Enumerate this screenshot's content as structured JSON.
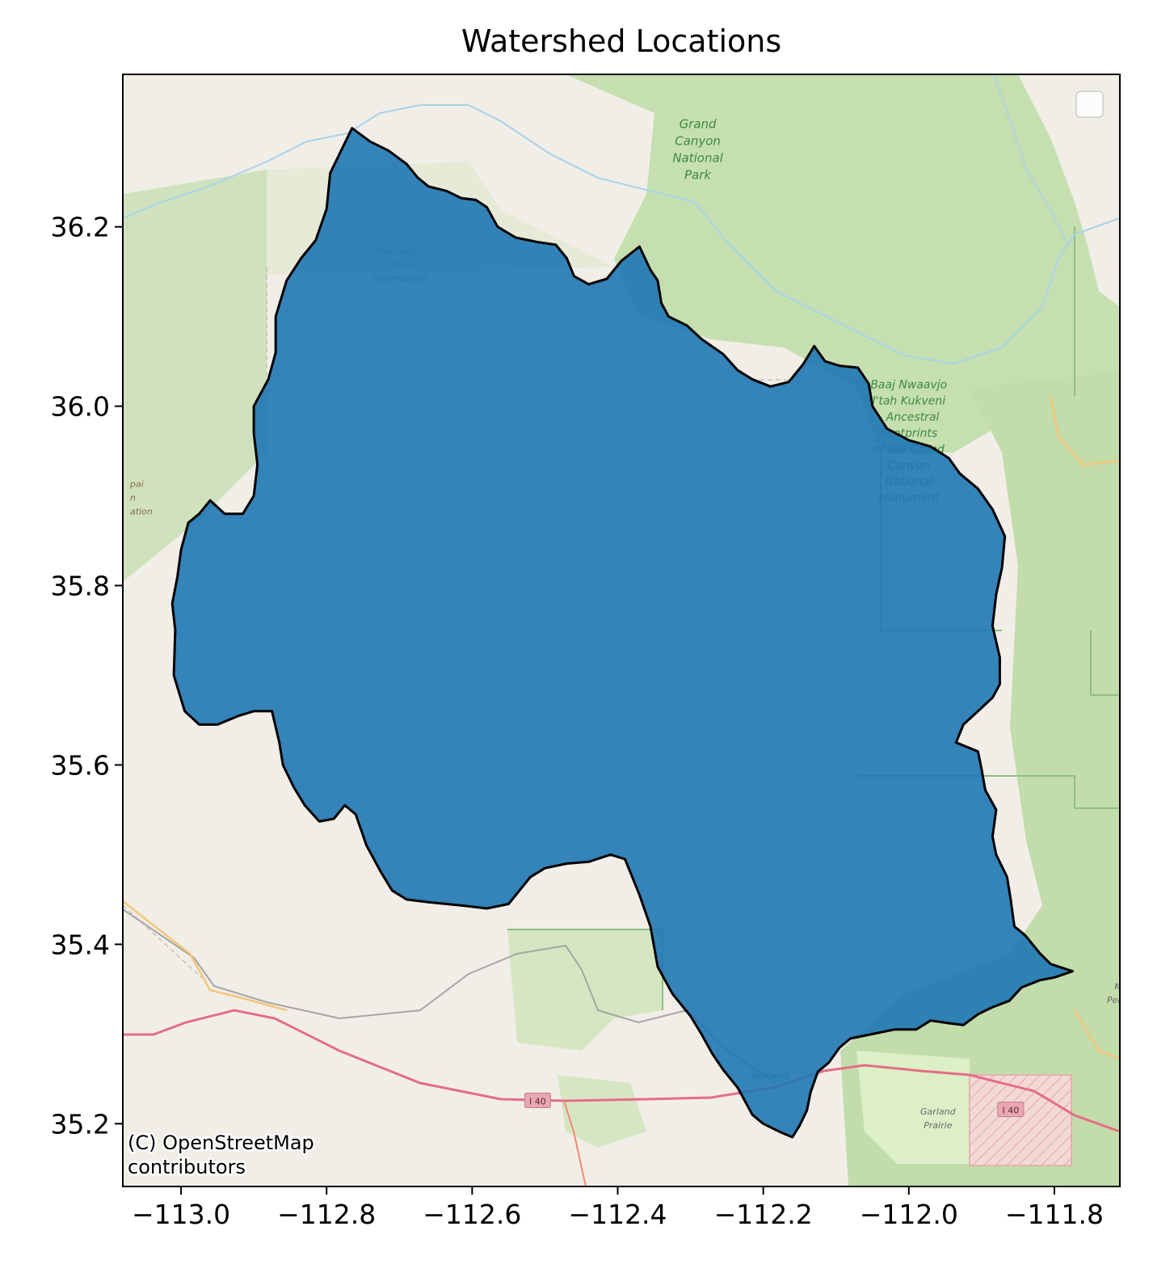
{
  "chart_data": {
    "type": "map",
    "title": "Watershed Locations",
    "xlim": [
      -113.08,
      -111.71
    ],
    "ylim": [
      35.13,
      36.37
    ],
    "x_ticks": [
      -113.0,
      -112.8,
      -112.6,
      -112.4,
      -112.2,
      -112.0,
      -111.8
    ],
    "x_tick_labels": [
      "−113.0",
      "−112.8",
      "−112.6",
      "−112.4",
      "−112.2",
      "−112.0",
      "−111.8"
    ],
    "y_ticks": [
      35.2,
      35.4,
      35.6,
      35.8,
      36.0,
      36.2
    ],
    "y_tick_labels": [
      "35.2",
      "35.4",
      "35.6",
      "35.8",
      "36.0",
      "36.2"
    ],
    "legend": {
      "placement": "upper right",
      "entries": []
    },
    "basemap_attribution": [
      "(C) OpenStreetMap",
      "contributors"
    ],
    "basemap_labels": [
      {
        "lines": [
          "Grand",
          "Canyon",
          "National",
          "Park"
        ],
        "lon": -112.29,
        "lat": 36.31
      },
      {
        "lines": [
          "Navasupai",
          "Indian",
          "Reservation"
        ],
        "lon": -112.7,
        "lat": 36.17
      },
      {
        "lines": [
          "Baaj Nwaavjo",
          "I'tah Kukveni",
          "- Ancestral",
          "Footprints",
          "of the Grand",
          "Canyon",
          "National",
          "Monument"
        ],
        "lon": -112.0,
        "lat": 36.02
      },
      {
        "lines": [
          "pai",
          "n",
          "ation"
        ],
        "lon": -113.07,
        "lat": 35.91
      },
      {
        "lines": [
          "Garland",
          "Prairie"
        ],
        "lon": -111.96,
        "lat": 35.21
      },
      {
        "lines": [
          "Williams"
        ],
        "lon": -112.19,
        "lat": 35.25
      },
      {
        "lines": [
          "Ka",
          "Peaks"
        ],
        "lon": -111.71,
        "lat": 35.35
      }
    ],
    "road_shields": [
      {
        "label": "I 40",
        "lon": -112.51,
        "lat": 35.226
      },
      {
        "label": "I 40",
        "lon": -111.86,
        "lat": 35.216
      }
    ],
    "watershed": {
      "fill": "#1f77b4",
      "edge": "#000000",
      "opacity": 0.9,
      "boundary": [
        [
          -112.765,
          36.31
        ],
        [
          -112.74,
          36.295
        ],
        [
          -112.715,
          36.285
        ],
        [
          -112.69,
          36.27
        ],
        [
          -112.675,
          36.255
        ],
        [
          -112.66,
          36.245
        ],
        [
          -112.635,
          36.24
        ],
        [
          -112.615,
          36.232
        ],
        [
          -112.595,
          36.23
        ],
        [
          -112.58,
          36.222
        ],
        [
          -112.565,
          36.2
        ],
        [
          -112.54,
          36.188
        ],
        [
          -112.51,
          36.183
        ],
        [
          -112.485,
          36.18
        ],
        [
          -112.47,
          36.165
        ],
        [
          -112.46,
          36.145
        ],
        [
          -112.44,
          36.136
        ],
        [
          -112.415,
          36.142
        ],
        [
          -112.395,
          36.162
        ],
        [
          -112.37,
          36.178
        ],
        [
          -112.355,
          36.152
        ],
        [
          -112.345,
          36.14
        ],
        [
          -112.34,
          36.115
        ],
        [
          -112.33,
          36.1
        ],
        [
          -112.305,
          36.09
        ],
        [
          -112.285,
          36.075
        ],
        [
          -112.255,
          36.058
        ],
        [
          -112.235,
          36.04
        ],
        [
          -112.215,
          36.03
        ],
        [
          -112.19,
          36.022
        ],
        [
          -112.165,
          36.027
        ],
        [
          -112.145,
          36.047
        ],
        [
          -112.13,
          36.067
        ],
        [
          -112.115,
          36.05
        ],
        [
          -112.095,
          36.045
        ],
        [
          -112.07,
          36.043
        ],
        [
          -112.055,
          36.025
        ],
        [
          -112.05,
          36.0
        ],
        [
          -112.03,
          35.975
        ],
        [
          -112.0,
          35.962
        ],
        [
          -111.97,
          35.955
        ],
        [
          -111.945,
          35.942
        ],
        [
          -111.93,
          35.925
        ],
        [
          -111.905,
          35.908
        ],
        [
          -111.885,
          35.885
        ],
        [
          -111.868,
          35.855
        ],
        [
          -111.872,
          35.82
        ],
        [
          -111.88,
          35.79
        ],
        [
          -111.885,
          35.755
        ],
        [
          -111.875,
          35.72
        ],
        [
          -111.875,
          35.69
        ],
        [
          -111.885,
          35.675
        ],
        [
          -111.905,
          35.66
        ],
        [
          -111.925,
          35.645
        ],
        [
          -111.935,
          35.625
        ],
        [
          -111.905,
          35.615
        ],
        [
          -111.9,
          35.595
        ],
        [
          -111.895,
          35.572
        ],
        [
          -111.88,
          35.55
        ],
        [
          -111.885,
          35.52
        ],
        [
          -111.88,
          35.5
        ],
        [
          -111.865,
          35.475
        ],
        [
          -111.86,
          35.45
        ],
        [
          -111.855,
          35.42
        ],
        [
          -111.84,
          35.41
        ],
        [
          -111.82,
          35.39
        ],
        [
          -111.805,
          35.378
        ],
        [
          -111.775,
          35.37
        ],
        [
          -111.8,
          35.363
        ],
        [
          -111.82,
          35.36
        ],
        [
          -111.845,
          35.352
        ],
        [
          -111.862,
          35.337
        ],
        [
          -111.885,
          35.33
        ],
        [
          -111.905,
          35.322
        ],
        [
          -111.925,
          35.31
        ],
        [
          -111.945,
          35.312
        ],
        [
          -111.97,
          35.315
        ],
        [
          -111.99,
          35.305
        ],
        [
          -112.02,
          35.305
        ],
        [
          -112.05,
          35.3
        ],
        [
          -112.08,
          35.295
        ],
        [
          -112.095,
          35.285
        ],
        [
          -112.11,
          35.268
        ],
        [
          -112.125,
          35.258
        ],
        [
          -112.135,
          35.235
        ],
        [
          -112.14,
          35.215
        ],
        [
          -112.15,
          35.198
        ],
        [
          -112.16,
          35.185
        ],
        [
          -112.175,
          35.19
        ],
        [
          -112.2,
          35.2
        ],
        [
          -112.215,
          35.21
        ],
        [
          -112.235,
          35.24
        ],
        [
          -112.255,
          35.26
        ],
        [
          -112.27,
          35.278
        ],
        [
          -112.285,
          35.3
        ],
        [
          -112.3,
          35.32
        ],
        [
          -112.325,
          35.345
        ],
        [
          -112.345,
          35.375
        ],
        [
          -112.355,
          35.42
        ],
        [
          -112.37,
          35.455
        ],
        [
          -112.38,
          35.475
        ],
        [
          -112.39,
          35.495
        ],
        [
          -112.41,
          35.5
        ],
        [
          -112.44,
          35.492
        ],
        [
          -112.47,
          35.49
        ],
        [
          -112.5,
          35.485
        ],
        [
          -112.52,
          35.475
        ],
        [
          -112.535,
          35.46
        ],
        [
          -112.55,
          35.445
        ],
        [
          -112.58,
          35.44
        ],
        [
          -112.61,
          35.443
        ],
        [
          -112.635,
          35.445
        ],
        [
          -112.66,
          35.447
        ],
        [
          -112.69,
          35.45
        ],
        [
          -112.71,
          35.46
        ],
        [
          -112.725,
          35.48
        ],
        [
          -112.745,
          35.51
        ],
        [
          -112.76,
          35.545
        ],
        [
          -112.775,
          35.555
        ],
        [
          -112.79,
          35.54
        ],
        [
          -112.81,
          35.537
        ],
        [
          -112.83,
          35.555
        ],
        [
          -112.845,
          35.575
        ],
        [
          -112.86,
          35.6
        ],
        [
          -112.865,
          35.625
        ],
        [
          -112.875,
          35.66
        ],
        [
          -112.9,
          35.66
        ],
        [
          -112.92,
          35.655
        ],
        [
          -112.95,
          35.645
        ],
        [
          -112.975,
          35.645
        ],
        [
          -112.995,
          35.66
        ],
        [
          -113.01,
          35.7
        ],
        [
          -113.008,
          35.75
        ],
        [
          -113.012,
          35.78
        ],
        [
          -113.005,
          35.81
        ],
        [
          -113.0,
          35.84
        ],
        [
          -112.99,
          35.87
        ],
        [
          -112.975,
          35.88
        ],
        [
          -112.96,
          35.895
        ],
        [
          -112.94,
          35.88
        ],
        [
          -112.915,
          35.88
        ],
        [
          -112.9,
          35.9
        ],
        [
          -112.895,
          35.935
        ],
        [
          -112.9,
          35.97
        ],
        [
          -112.9,
          36.0
        ],
        [
          -112.88,
          36.03
        ],
        [
          -112.87,
          36.06
        ],
        [
          -112.87,
          36.1
        ],
        [
          -112.855,
          36.14
        ],
        [
          -112.835,
          36.165
        ],
        [
          -112.815,
          36.185
        ],
        [
          -112.8,
          36.22
        ],
        [
          -112.795,
          36.26
        ],
        [
          -112.78,
          36.285
        ]
      ]
    }
  }
}
